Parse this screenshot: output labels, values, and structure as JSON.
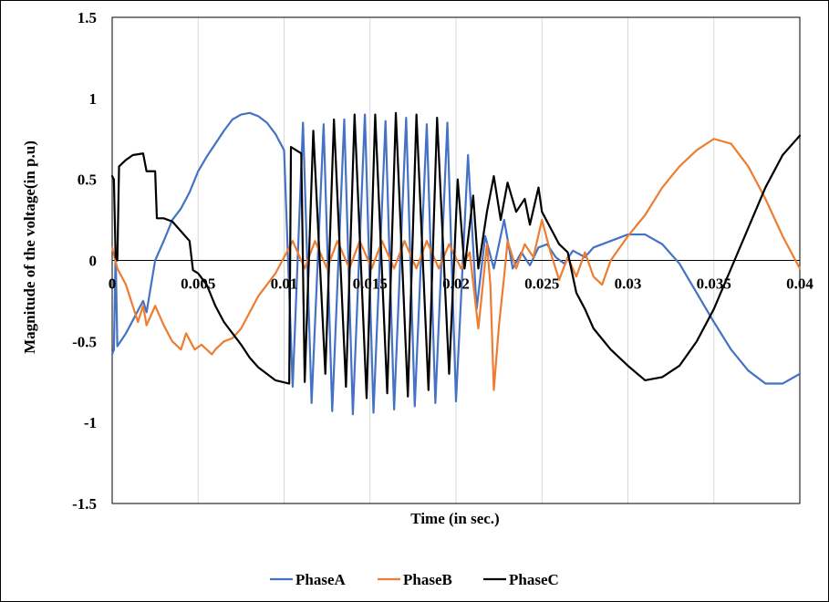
{
  "chart_data": {
    "type": "line",
    "title": "",
    "xlabel": "Time (in sec.)",
    "ylabel": "Magnitude  of the voltage(in p.u)",
    "xlim": [
      0,
      0.04
    ],
    "ylim": [
      -1.5,
      1.5
    ],
    "x_ticks": [
      0,
      0.005,
      0.01,
      0.015,
      0.02,
      0.025,
      0.03,
      0.035,
      0.04
    ],
    "x_tick_labels": [
      "0",
      "0.005",
      "0.01",
      "0.015",
      "0.02",
      "0.025",
      "0.03",
      "0.035",
      "0.04"
    ],
    "y_ticks": [
      1.5,
      1,
      0.5,
      0,
      -0.5,
      -1,
      -1.5
    ],
    "y_tick_labels": [
      "1.5",
      "1",
      "0.5",
      "0",
      "-0.5",
      "-1",
      "-1.5"
    ],
    "grid": "vertical",
    "legend_position": "bottom",
    "series": [
      {
        "name": "PhaseA",
        "color": "#4472C4",
        "points": [
          [
            0,
            -0.58
          ],
          [
            0.0001,
            -0.55
          ],
          [
            0.0002,
            0.05
          ],
          [
            0.0003,
            -0.53
          ],
          [
            0.0008,
            -0.45
          ],
          [
            0.0018,
            -0.25
          ],
          [
            0.002,
            -0.32
          ],
          [
            0.0025,
            0.0
          ],
          [
            0.003,
            0.12
          ],
          [
            0.0035,
            0.25
          ],
          [
            0.004,
            0.32
          ],
          [
            0.0045,
            0.42
          ],
          [
            0.005,
            0.55
          ],
          [
            0.0055,
            0.64
          ],
          [
            0.006,
            0.72
          ],
          [
            0.0065,
            0.8
          ],
          [
            0.007,
            0.87
          ],
          [
            0.0075,
            0.9
          ],
          [
            0.008,
            0.91
          ],
          [
            0.0085,
            0.89
          ],
          [
            0.009,
            0.85
          ],
          [
            0.0095,
            0.78
          ],
          [
            0.01,
            0.68
          ],
          [
            0.0105,
            -0.78
          ],
          [
            0.0111,
            0.85
          ],
          [
            0.0116,
            -0.88
          ],
          [
            0.0123,
            0.84
          ],
          [
            0.0128,
            -0.93
          ],
          [
            0.0135,
            0.87
          ],
          [
            0.014,
            -0.95
          ],
          [
            0.0147,
            0.9
          ],
          [
            0.0152,
            -0.94
          ],
          [
            0.0159,
            0.86
          ],
          [
            0.0164,
            -0.92
          ],
          [
            0.0171,
            0.88
          ],
          [
            0.0176,
            -0.9
          ],
          [
            0.0183,
            0.84
          ],
          [
            0.0188,
            -0.88
          ],
          [
            0.0195,
            0.85
          ],
          [
            0.02,
            -0.87
          ],
          [
            0.0207,
            0.65
          ],
          [
            0.0212,
            -0.3
          ],
          [
            0.0217,
            0.15
          ],
          [
            0.0222,
            -0.05
          ],
          [
            0.0228,
            0.25
          ],
          [
            0.0233,
            -0.05
          ],
          [
            0.0238,
            0.05
          ],
          [
            0.0243,
            -0.03
          ],
          [
            0.0248,
            0.08
          ],
          [
            0.0253,
            0.1
          ],
          [
            0.0258,
            0.02
          ],
          [
            0.0263,
            -0.02
          ],
          [
            0.0268,
            0.06
          ],
          [
            0.0275,
            0.02
          ],
          [
            0.028,
            0.08
          ],
          [
            0.029,
            0.12
          ],
          [
            0.03,
            0.16
          ],
          [
            0.031,
            0.16
          ],
          [
            0.032,
            0.1
          ],
          [
            0.033,
            -0.02
          ],
          [
            0.034,
            -0.2
          ],
          [
            0.035,
            -0.38
          ],
          [
            0.036,
            -0.55
          ],
          [
            0.037,
            -0.68
          ],
          [
            0.038,
            -0.76
          ],
          [
            0.039,
            -0.76
          ],
          [
            0.04,
            -0.7
          ]
        ]
      },
      {
        "name": "PhaseB",
        "color": "#ED7D31",
        "points": [
          [
            0,
            0.08
          ],
          [
            0.0003,
            -0.05
          ],
          [
            0.0008,
            -0.15
          ],
          [
            0.0015,
            -0.38
          ],
          [
            0.0018,
            -0.28
          ],
          [
            0.002,
            -0.4
          ],
          [
            0.0025,
            -0.28
          ],
          [
            0.003,
            -0.4
          ],
          [
            0.0035,
            -0.5
          ],
          [
            0.004,
            -0.55
          ],
          [
            0.0043,
            -0.45
          ],
          [
            0.0048,
            -0.55
          ],
          [
            0.0052,
            -0.52
          ],
          [
            0.0058,
            -0.58
          ],
          [
            0.006,
            -0.55
          ],
          [
            0.0065,
            -0.5
          ],
          [
            0.007,
            -0.48
          ],
          [
            0.0075,
            -0.42
          ],
          [
            0.008,
            -0.32
          ],
          [
            0.0085,
            -0.22
          ],
          [
            0.009,
            -0.15
          ],
          [
            0.0095,
            -0.08
          ],
          [
            0.0105,
            0.12
          ],
          [
            0.0112,
            -0.05
          ],
          [
            0.0118,
            0.12
          ],
          [
            0.0125,
            -0.05
          ],
          [
            0.0131,
            0.12
          ],
          [
            0.0138,
            -0.05
          ],
          [
            0.0144,
            0.12
          ],
          [
            0.0151,
            -0.05
          ],
          [
            0.0157,
            0.12
          ],
          [
            0.0164,
            -0.05
          ],
          [
            0.017,
            0.12
          ],
          [
            0.0177,
            -0.05
          ],
          [
            0.0183,
            0.12
          ],
          [
            0.019,
            -0.05
          ],
          [
            0.0196,
            0.1
          ],
          [
            0.0203,
            -0.05
          ],
          [
            0.0208,
            0.05
          ],
          [
            0.0213,
            -0.42
          ],
          [
            0.0218,
            0.1
          ],
          [
            0.022,
            -0.15
          ],
          [
            0.0222,
            -0.8
          ],
          [
            0.0225,
            -0.4
          ],
          [
            0.0228,
            -0.1
          ],
          [
            0.023,
            0.12
          ],
          [
            0.0235,
            -0.05
          ],
          [
            0.024,
            0.1
          ],
          [
            0.0245,
            0.02
          ],
          [
            0.025,
            0.25
          ],
          [
            0.0255,
            0.05
          ],
          [
            0.026,
            -0.12
          ],
          [
            0.0265,
            0.02
          ],
          [
            0.027,
            -0.1
          ],
          [
            0.0275,
            0.05
          ],
          [
            0.028,
            -0.1
          ],
          [
            0.0285,
            -0.15
          ],
          [
            0.029,
            0.0
          ],
          [
            0.03,
            0.15
          ],
          [
            0.031,
            0.28
          ],
          [
            0.032,
            0.45
          ],
          [
            0.033,
            0.58
          ],
          [
            0.034,
            0.68
          ],
          [
            0.035,
            0.75
          ],
          [
            0.036,
            0.72
          ],
          [
            0.037,
            0.58
          ],
          [
            0.038,
            0.38
          ],
          [
            0.039,
            0.15
          ],
          [
            0.04,
            -0.05
          ]
        ]
      },
      {
        "name": "PhaseC",
        "color": "#000000",
        "points": [
          [
            0,
            0.52
          ],
          [
            0.0001,
            0.5
          ],
          [
            0.0002,
            0.02
          ],
          [
            0.0003,
            0.0
          ],
          [
            0.0004,
            0.58
          ],
          [
            0.0008,
            0.62
          ],
          [
            0.0012,
            0.65
          ],
          [
            0.0018,
            0.66
          ],
          [
            0.002,
            0.55
          ],
          [
            0.0025,
            0.55
          ],
          [
            0.0026,
            0.26
          ],
          [
            0.003,
            0.26
          ],
          [
            0.0035,
            0.24
          ],
          [
            0.004,
            0.18
          ],
          [
            0.0045,
            0.12
          ],
          [
            0.0047,
            -0.06
          ],
          [
            0.005,
            -0.08
          ],
          [
            0.0055,
            -0.15
          ],
          [
            0.006,
            -0.28
          ],
          [
            0.0065,
            -0.38
          ],
          [
            0.007,
            -0.45
          ],
          [
            0.0075,
            -0.52
          ],
          [
            0.008,
            -0.6
          ],
          [
            0.0085,
            -0.66
          ],
          [
            0.009,
            -0.7
          ],
          [
            0.0095,
            -0.74
          ],
          [
            0.0103,
            -0.76
          ],
          [
            0.0104,
            0.7
          ],
          [
            0.011,
            0.66
          ],
          [
            0.0112,
            -0.75
          ],
          [
            0.0117,
            0.8
          ],
          [
            0.0124,
            -0.7
          ],
          [
            0.0129,
            0.87
          ],
          [
            0.0136,
            -0.78
          ],
          [
            0.0141,
            0.9
          ],
          [
            0.0148,
            -0.85
          ],
          [
            0.0153,
            0.9
          ],
          [
            0.016,
            -0.82
          ],
          [
            0.0165,
            0.91
          ],
          [
            0.0172,
            -0.84
          ],
          [
            0.0177,
            0.9
          ],
          [
            0.0184,
            -0.8
          ],
          [
            0.0189,
            0.88
          ],
          [
            0.0196,
            -0.7
          ],
          [
            0.0201,
            0.5
          ],
          [
            0.0205,
            -0.05
          ],
          [
            0.021,
            0.4
          ],
          [
            0.0213,
            -0.05
          ],
          [
            0.0218,
            0.3
          ],
          [
            0.0222,
            0.52
          ],
          [
            0.0226,
            0.25
          ],
          [
            0.023,
            0.48
          ],
          [
            0.0235,
            0.3
          ],
          [
            0.024,
            0.38
          ],
          [
            0.0243,
            0.22
          ],
          [
            0.0248,
            0.45
          ],
          [
            0.025,
            0.3
          ],
          [
            0.0255,
            0.2
          ],
          [
            0.026,
            0.1
          ],
          [
            0.0265,
            0.05
          ],
          [
            0.027,
            -0.2
          ],
          [
            0.0275,
            -0.3
          ],
          [
            0.028,
            -0.42
          ],
          [
            0.029,
            -0.55
          ],
          [
            0.03,
            -0.65
          ],
          [
            0.031,
            -0.74
          ],
          [
            0.032,
            -0.72
          ],
          [
            0.033,
            -0.65
          ],
          [
            0.034,
            -0.5
          ],
          [
            0.035,
            -0.3
          ],
          [
            0.036,
            -0.05
          ],
          [
            0.037,
            0.2
          ],
          [
            0.038,
            0.45
          ],
          [
            0.039,
            0.65
          ],
          [
            0.04,
            0.77
          ]
        ]
      }
    ]
  }
}
